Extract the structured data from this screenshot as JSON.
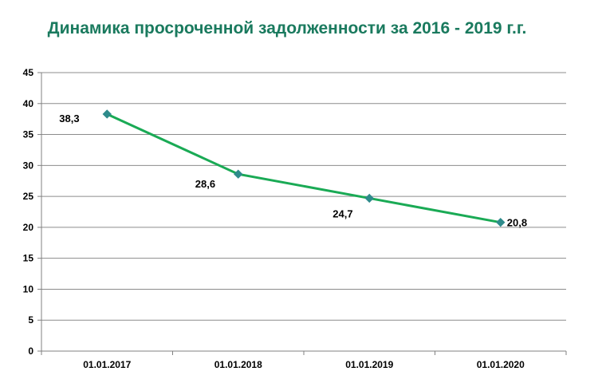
{
  "chart_data": {
    "type": "line",
    "title": "Динамика просроченной задолженности за 2016 - 2019 г.г.",
    "xlabel": "",
    "ylabel": "",
    "categories": [
      "01.01.2017",
      "01.01.2018",
      "01.01.2019",
      "01.01.2020"
    ],
    "series": [
      {
        "values": [
          38.3,
          28.6,
          24.7,
          20.8
        ],
        "data_labels": [
          "38,3",
          "28,6",
          "24,7",
          "20,8"
        ],
        "color": "#1aaa55",
        "marker_color": "#2e8b8b"
      }
    ],
    "ylim": [
      0,
      45
    ],
    "yticks": [
      0,
      5,
      10,
      15,
      20,
      25,
      30,
      35,
      40,
      45
    ],
    "grid": true,
    "legend": "none"
  }
}
